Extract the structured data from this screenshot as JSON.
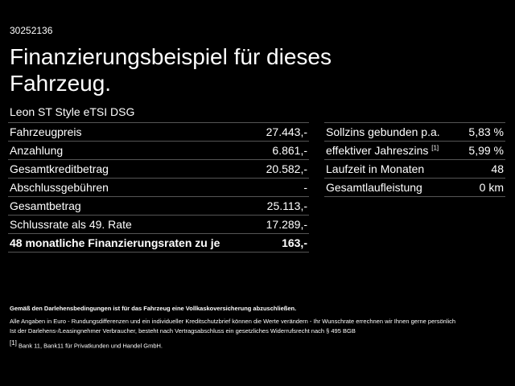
{
  "header": {
    "reference": "30252136",
    "title": "Finanzierungsbeispiel für dieses Fahrzeug.",
    "model": "Leon ST Style eTSI DSG"
  },
  "left_table": {
    "rows": [
      [
        "Fahrzeugpreis",
        "27.443,-"
      ],
      [
        "Anzahlung",
        "6.861,-"
      ],
      [
        "Gesamtkreditbetrag",
        "20.582,-"
      ],
      [
        "Abschlussgebühren",
        "-"
      ],
      [
        "Gesamtbetrag",
        "25.113,-"
      ],
      [
        "Schlussrate als 49. Rate",
        "17.289,-"
      ],
      [
        "48 monatliche Finanzierungsraten zu je",
        "163,-"
      ]
    ]
  },
  "right_table": {
    "rows": [
      [
        "Sollzins gebunden p.a.",
        "5,83 %"
      ],
      [
        "effektiver Jahreszins",
        "5,99 %"
      ],
      [
        "Laufzeit in Monaten",
        "48"
      ],
      [
        "Gesamtlaufleistung",
        "0 km"
      ]
    ],
    "footnote_marker": "[1]"
  },
  "footer": {
    "notice": "Gemäß den Darlehensbedingungen ist für das Fahrzeug eine Vollkaskoversicherung abzuschließen.",
    "lines": [
      "Alle Angaben in Euro - Rundungsdifferenzen und ein individueller Kreditschutzbrief können die Werte verändern - Ihr Wunschrate errechnen wir Ihnen gerne persönlich",
      "Ist der Darlehens-/Leasingnehmer Verbraucher, besteht nach Vertragsabschluss ein gesetzliches Widerrufsrecht nach § 495 BGB"
    ],
    "footnote_marker": "[1]",
    "footnote": "Bank 11, Bank11 für Privatkunden und Handel GmbH."
  }
}
